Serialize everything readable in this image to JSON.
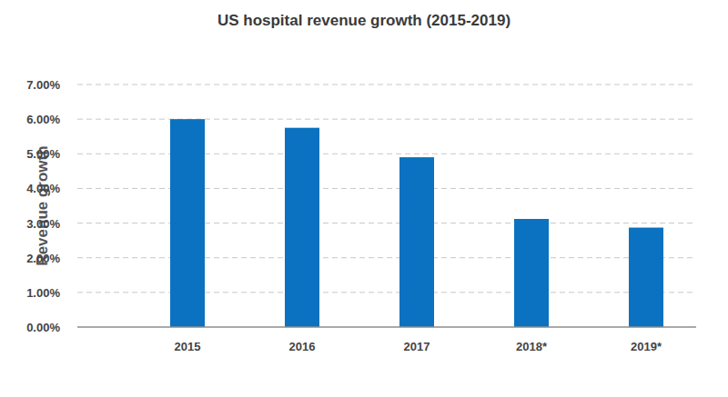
{
  "chart_data": {
    "type": "bar",
    "title": "US hospital revenue growth (2015-2019)",
    "y_label": "Revenue growth",
    "categories": [
      "2015",
      "2016",
      "2017",
      "2018*",
      "2019*"
    ],
    "values": [
      6.0,
      5.75,
      4.9,
      3.12,
      2.87
    ],
    "color": "#0a72c0",
    "ylim": [
      0,
      7
    ],
    "yticks": [
      {
        "value": 0,
        "label": "0.00%"
      },
      {
        "value": 1,
        "label": "1.00%"
      },
      {
        "value": 2,
        "label": "2.00%"
      },
      {
        "value": 3,
        "label": "3.00%"
      },
      {
        "value": 4,
        "label": "4.00%"
      },
      {
        "value": 5,
        "label": "5.00%"
      },
      {
        "value": 6,
        "label": "6.00%"
      },
      {
        "value": 7,
        "label": "7.00%"
      }
    ],
    "grid": true
  }
}
